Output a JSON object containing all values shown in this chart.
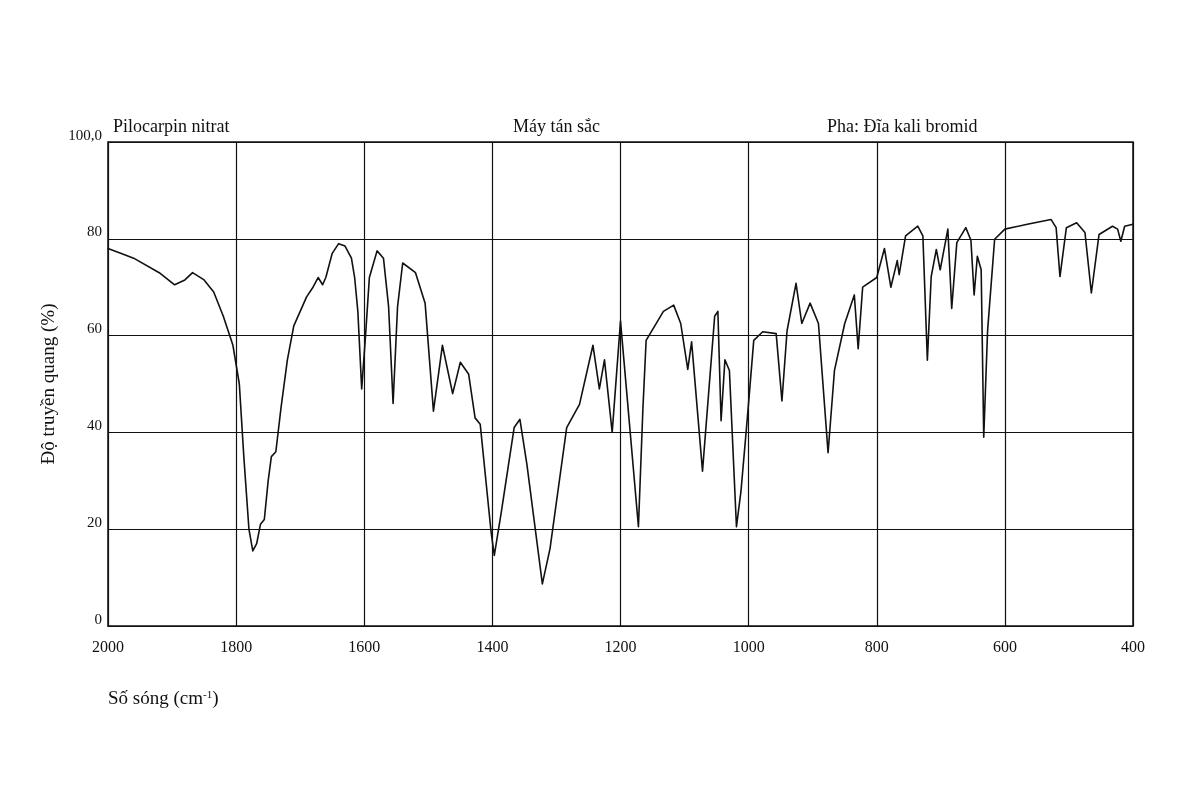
{
  "chart_data": {
    "type": "line",
    "title": "Pilocarpin nitrat",
    "annotations": [
      "Máy tán sắc",
      "Pha: Đĩa kali bromid"
    ],
    "xlabel": "Số sóng (cm$^{-1}$)",
    "ylabel": "Độ truyền quang (%)",
    "xlim": [
      2000,
      400
    ],
    "xticks": [
      2000,
      1800,
      1600,
      1400,
      1200,
      1000,
      800,
      600,
      400
    ],
    "ylim": [
      0,
      100
    ],
    "yticks": [
      0,
      20,
      40,
      60,
      80,
      {
        "value": 100,
        "label": "100,0"
      }
    ],
    "grid": true,
    "marker": "none",
    "line_style": "solid",
    "series": [
      {
        "color": "#111111",
        "x": [
          2000,
          1960,
          1920,
          1896,
          1880,
          1868,
          1850,
          1835,
          1820,
          1805,
          1795,
          1788,
          1780,
          1774,
          1768,
          1762,
          1756,
          1750,
          1745,
          1738,
          1730,
          1720,
          1710,
          1700,
          1690,
          1680,
          1672,
          1665,
          1660,
          1650,
          1640,
          1630,
          1620,
          1615,
          1610,
          1604,
          1598,
          1592,
          1580,
          1570,
          1562,
          1555,
          1548,
          1540,
          1520,
          1505,
          1492,
          1478,
          1462,
          1450,
          1437,
          1427,
          1419,
          1402,
          1397,
          1386,
          1366,
          1357,
          1346,
          1322,
          1310,
          1284,
          1264,
          1243,
          1233,
          1225,
          1213,
          1200,
          1172,
          1165,
          1160,
          1133,
          1117,
          1106,
          1095,
          1089,
          1072,
          1053,
          1048,
          1043,
          1037,
          1030,
          1019,
          1012,
          1002,
          992,
          978,
          957,
          948,
          940,
          926,
          917,
          904,
          891,
          876,
          866,
          850,
          835,
          829,
          822,
          800,
          788,
          778,
          768,
          765,
          755,
          736,
          728,
          721,
          715,
          707,
          701,
          689,
          683,
          675,
          661,
          653,
          648,
          643,
          637,
          633,
          627,
          616,
          600,
          565,
          528,
          520,
          514,
          504,
          488,
          475,
          465,
          453,
          432,
          424,
          419,
          413,
          400
        ],
        "values": [
          78,
          76,
          73,
          70.5,
          71.5,
          73,
          71.5,
          69,
          64,
          58,
          50,
          35,
          20,
          15.5,
          17,
          21,
          22,
          30,
          35,
          36,
          45,
          55,
          62,
          65,
          68,
          70,
          72,
          70.5,
          72,
          77,
          79,
          78.5,
          76,
          72,
          65,
          49,
          60,
          72,
          77.5,
          76,
          66,
          46,
          66,
          75,
          73,
          66.7,
          44.4,
          58,
          48,
          54.5,
          52,
          43,
          41.7,
          19.4,
          14.6,
          23.6,
          41,
          42.7,
          33.3,
          8.7,
          16,
          41,
          45.8,
          58,
          49,
          55,
          40,
          63,
          20.5,
          45,
          59,
          65,
          66.3,
          62.5,
          53,
          58.7,
          32,
          64,
          65,
          42.4,
          55,
          52.8,
          20.5,
          27.8,
          43,
          59,
          60.8,
          60.4,
          46.5,
          61,
          70.8,
          62.5,
          66.7,
          62.5,
          35.8,
          52.8,
          62.5,
          68.4,
          57.3,
          70,
          72,
          78,
          70,
          75.5,
          72.6,
          80.6,
          82.6,
          80.6,
          54.9,
          72.2,
          77.8,
          73.6,
          82,
          65.6,
          79.2,
          82.3,
          79.7,
          68.4,
          76.4,
          73.6,
          39,
          61,
          79.9,
          82,
          83,
          84,
          82.3,
          72.2,
          82.3,
          83.3,
          81.3,
          68.8,
          80.9,
          82.6,
          82,
          79.5,
          82.6,
          83
        ]
      }
    ]
  }
}
